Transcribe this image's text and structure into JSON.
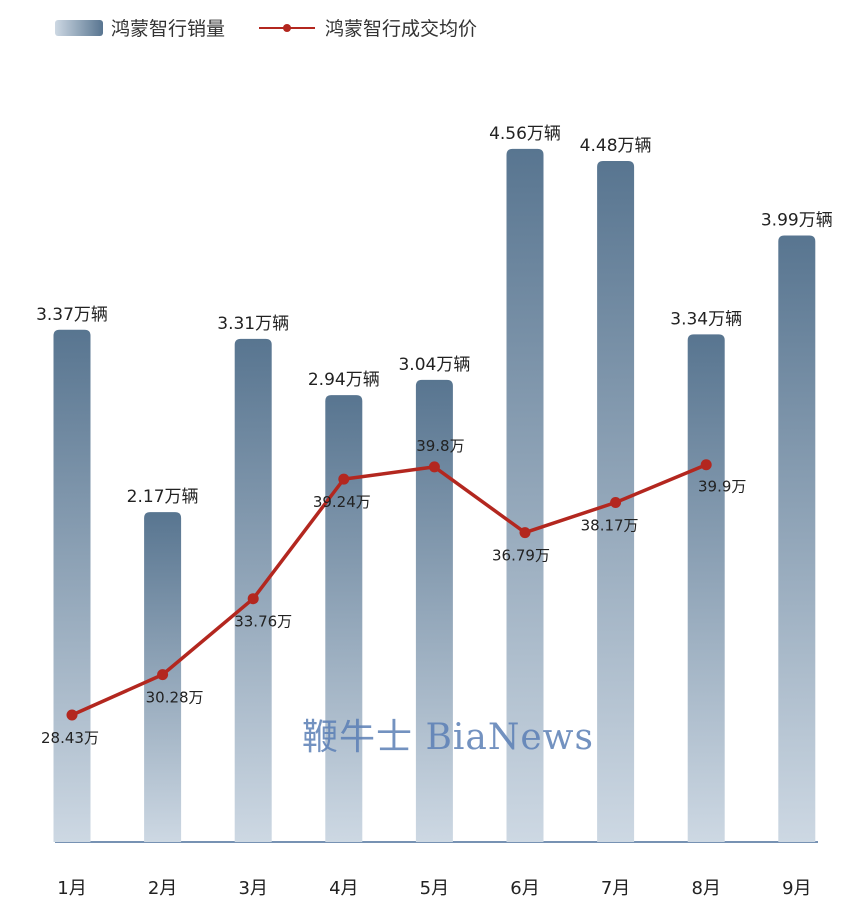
{
  "legend": {
    "bar_label": "鸿蒙智行销量",
    "line_label": "鸿蒙智行成交均价"
  },
  "watermark": {
    "text": "鞭牛士 BiaNews"
  },
  "colors": {
    "bar_top": "#587590",
    "bar_bottom": "#cdd8e3",
    "line": "#b3271f",
    "axis": "#4a6f9a",
    "text": "#222222",
    "watermark": "#5b7fb6"
  },
  "chart_data": {
    "type": "bar",
    "categories": [
      "1月",
      "2月",
      "3月",
      "4月",
      "5月",
      "6月",
      "7月",
      "8月",
      "9月"
    ],
    "series": [
      {
        "name": "鸿蒙智行销量",
        "type": "bar",
        "values": [
          3.37,
          2.17,
          3.31,
          2.94,
          3.04,
          4.56,
          4.48,
          3.34,
          3.99
        ],
        "labels": [
          "3.37万辆",
          "2.17万辆",
          "3.31万辆",
          "2.94万辆",
          "3.04万辆",
          "4.56万辆",
          "4.48万辆",
          "3.34万辆",
          "3.99万辆"
        ]
      },
      {
        "name": "鸿蒙智行成交均价",
        "type": "line",
        "values": [
          28.43,
          30.28,
          33.76,
          39.24,
          39.8,
          36.79,
          38.17,
          39.9,
          null
        ],
        "labels": [
          "28.43万",
          "30.28万",
          "33.76万",
          "39.24万",
          "39.8万",
          "36.79万",
          "38.17万",
          "39.9万",
          ""
        ]
      }
    ],
    "grid": false,
    "legend_position": "top-left"
  }
}
